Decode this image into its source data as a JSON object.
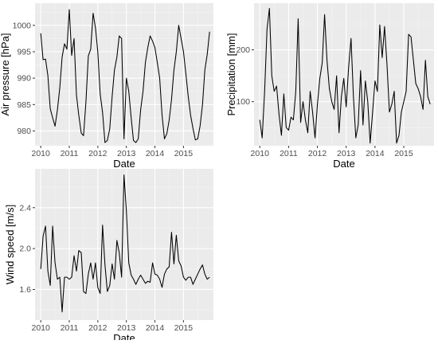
{
  "style": {
    "panel_bg": "#ebebeb",
    "grid_major": "#ffffff",
    "grid_minor": "#f4f4f4",
    "line_color": "#000000",
    "tick_color": "#4d4d4d"
  },
  "chart_data": [
    {
      "type": "line",
      "title": "",
      "xlabel": "Date",
      "ylabel": "Air pressure [hPa]",
      "xlim": [
        2009.8,
        2016.05
      ],
      "ylim": [
        977.2,
        1004.2
      ],
      "xticks": [
        2010,
        2011,
        2012,
        2013,
        2014,
        2015
      ],
      "yticks": [
        980,
        985,
        990,
        995,
        1000
      ],
      "grid": true,
      "legend": "none",
      "x": [
        2010.0,
        2010.083,
        2010.167,
        2010.25,
        2010.333,
        2010.417,
        2010.5,
        2010.583,
        2010.667,
        2010.75,
        2010.833,
        2010.917,
        2011.0,
        2011.083,
        2011.167,
        2011.25,
        2011.333,
        2011.417,
        2011.5,
        2011.583,
        2011.667,
        2011.75,
        2011.833,
        2011.917,
        2012.0,
        2012.083,
        2012.167,
        2012.25,
        2012.333,
        2012.417,
        2012.5,
        2012.583,
        2012.667,
        2012.75,
        2012.833,
        2012.917,
        2013.0,
        2013.083,
        2013.167,
        2013.25,
        2013.333,
        2013.417,
        2013.5,
        2013.583,
        2013.667,
        2013.75,
        2013.833,
        2013.917,
        2014.0,
        2014.083,
        2014.167,
        2014.25,
        2014.333,
        2014.417,
        2014.5,
        2014.583,
        2014.667,
        2014.75,
        2014.833,
        2014.917,
        2015.0,
        2015.083,
        2015.167,
        2015.25,
        2015.333,
        2015.417,
        2015.5,
        2015.583,
        2015.667,
        2015.75,
        2015.833,
        2015.917
      ],
      "values": [
        998.5,
        993.5,
        993.6,
        990.5,
        984.2,
        982.5,
        980.9,
        984.0,
        988.2,
        994.0,
        996.5,
        995.5,
        1003.0,
        994.3,
        997.5,
        986.8,
        983.0,
        979.6,
        979.1,
        985.5,
        994.2,
        995.5,
        1002.3,
        999.5,
        995.0,
        987.0,
        983.5,
        977.8,
        978.2,
        980.4,
        986.5,
        991.5,
        994.0,
        998.0,
        997.5,
        978.5,
        990.0,
        987.5,
        982.5,
        978.2,
        977.8,
        978.5,
        984.0,
        987.5,
        993.0,
        995.8,
        998.0,
        997.0,
        995.8,
        993.0,
        990.0,
        983.0,
        978.5,
        979.5,
        982.0,
        986.0,
        991.5,
        995.0,
        1000.0,
        997.5,
        995.0,
        991.0,
        986.5,
        983.0,
        980.5,
        978.3,
        978.5,
        981.0,
        985.0,
        991.5,
        994.5,
        998.8
      ]
    },
    {
      "type": "line",
      "title": "",
      "xlabel": "Date",
      "ylabel": "Precipitation [mm]",
      "xlim": [
        2009.8,
        2016.05
      ],
      "ylim": [
        15,
        290
      ],
      "xticks": [
        2010,
        2011,
        2012,
        2013,
        2014,
        2015
      ],
      "yticks": [
        100,
        200
      ],
      "grid": true,
      "legend": "none",
      "x": [
        2010.0,
        2010.083,
        2010.167,
        2010.25,
        2010.333,
        2010.417,
        2010.5,
        2010.583,
        2010.667,
        2010.75,
        2010.833,
        2010.917,
        2011.0,
        2011.083,
        2011.167,
        2011.25,
        2011.333,
        2011.417,
        2011.5,
        2011.583,
        2011.667,
        2011.75,
        2011.833,
        2011.917,
        2012.0,
        2012.083,
        2012.167,
        2012.25,
        2012.333,
        2012.417,
        2012.5,
        2012.583,
        2012.667,
        2012.75,
        2012.833,
        2012.917,
        2013.0,
        2013.083,
        2013.167,
        2013.25,
        2013.333,
        2013.417,
        2013.5,
        2013.583,
        2013.667,
        2013.75,
        2013.833,
        2013.917,
        2014.0,
        2014.083,
        2014.167,
        2014.25,
        2014.333,
        2014.417,
        2014.5,
        2014.583,
        2014.667,
        2014.75,
        2014.833,
        2014.917,
        2015.0,
        2015.083,
        2015.167,
        2015.25,
        2015.333,
        2015.417,
        2015.5,
        2015.583,
        2015.667,
        2015.75,
        2015.833,
        2015.917
      ],
      "values": [
        65,
        30,
        120,
        240,
        280,
        150,
        120,
        130,
        75,
        35,
        115,
        50,
        45,
        70,
        65,
        120,
        260,
        60,
        100,
        65,
        40,
        120,
        80,
        30,
        95,
        145,
        175,
        268,
        180,
        125,
        100,
        85,
        150,
        40,
        110,
        145,
        90,
        165,
        222,
        110,
        30,
        55,
        160,
        55,
        140,
        100,
        20,
        80,
        140,
        120,
        248,
        185,
        245,
        170,
        80,
        95,
        120,
        20,
        35,
        80,
        100,
        120,
        230,
        225,
        180,
        135,
        125,
        110,
        85,
        180,
        110,
        95
      ]
    },
    {
      "type": "line",
      "title": "",
      "xlabel": "Date",
      "ylabel": "Wind speed [m/s]",
      "xlim": [
        2009.8,
        2016.05
      ],
      "ylim": [
        1.3,
        2.78
      ],
      "xticks": [
        2010,
        2011,
        2012,
        2013,
        2014,
        2015
      ],
      "yticks": [
        1.6,
        2.0,
        2.4
      ],
      "grid": true,
      "legend": "none",
      "x": [
        2010.0,
        2010.083,
        2010.167,
        2010.25,
        2010.333,
        2010.417,
        2010.5,
        2010.583,
        2010.667,
        2010.75,
        2010.833,
        2010.917,
        2011.0,
        2011.083,
        2011.167,
        2011.25,
        2011.333,
        2011.417,
        2011.5,
        2011.583,
        2011.667,
        2011.75,
        2011.833,
        2011.917,
        2012.0,
        2012.083,
        2012.167,
        2012.25,
        2012.333,
        2012.417,
        2012.5,
        2012.583,
        2012.667,
        2012.75,
        2012.833,
        2012.917,
        2013.0,
        2013.083,
        2013.167,
        2013.25,
        2013.333,
        2013.417,
        2013.5,
        2013.583,
        2013.667,
        2013.75,
        2013.833,
        2013.917,
        2014.0,
        2014.083,
        2014.167,
        2014.25,
        2014.333,
        2014.417,
        2014.5,
        2014.583,
        2014.667,
        2014.75,
        2014.833,
        2014.917,
        2015.0,
        2015.083,
        2015.167,
        2015.25,
        2015.333,
        2015.417,
        2015.5,
        2015.583,
        2015.667,
        2015.75,
        2015.833,
        2015.917
      ],
      "values": [
        1.8,
        2.12,
        2.22,
        1.78,
        1.64,
        2.22,
        1.86,
        1.7,
        1.72,
        1.38,
        1.72,
        1.72,
        1.7,
        1.72,
        1.93,
        1.78,
        1.98,
        1.96,
        1.58,
        1.56,
        1.75,
        1.86,
        1.7,
        1.86,
        1.62,
        1.56,
        2.23,
        1.84,
        1.58,
        1.64,
        1.85,
        1.7,
        2.08,
        1.96,
        1.72,
        2.72,
        2.37,
        1.86,
        1.74,
        1.7,
        1.65,
        1.7,
        1.74,
        1.7,
        1.66,
        1.68,
        1.67,
        1.86,
        1.75,
        1.74,
        1.7,
        1.62,
        1.75,
        1.8,
        1.82,
        2.16,
        1.85,
        2.13,
        1.88,
        1.83,
        1.72,
        1.69,
        1.72,
        1.72,
        1.65,
        1.7,
        1.75,
        1.8,
        1.84,
        1.75,
        1.7,
        1.72
      ]
    }
  ]
}
